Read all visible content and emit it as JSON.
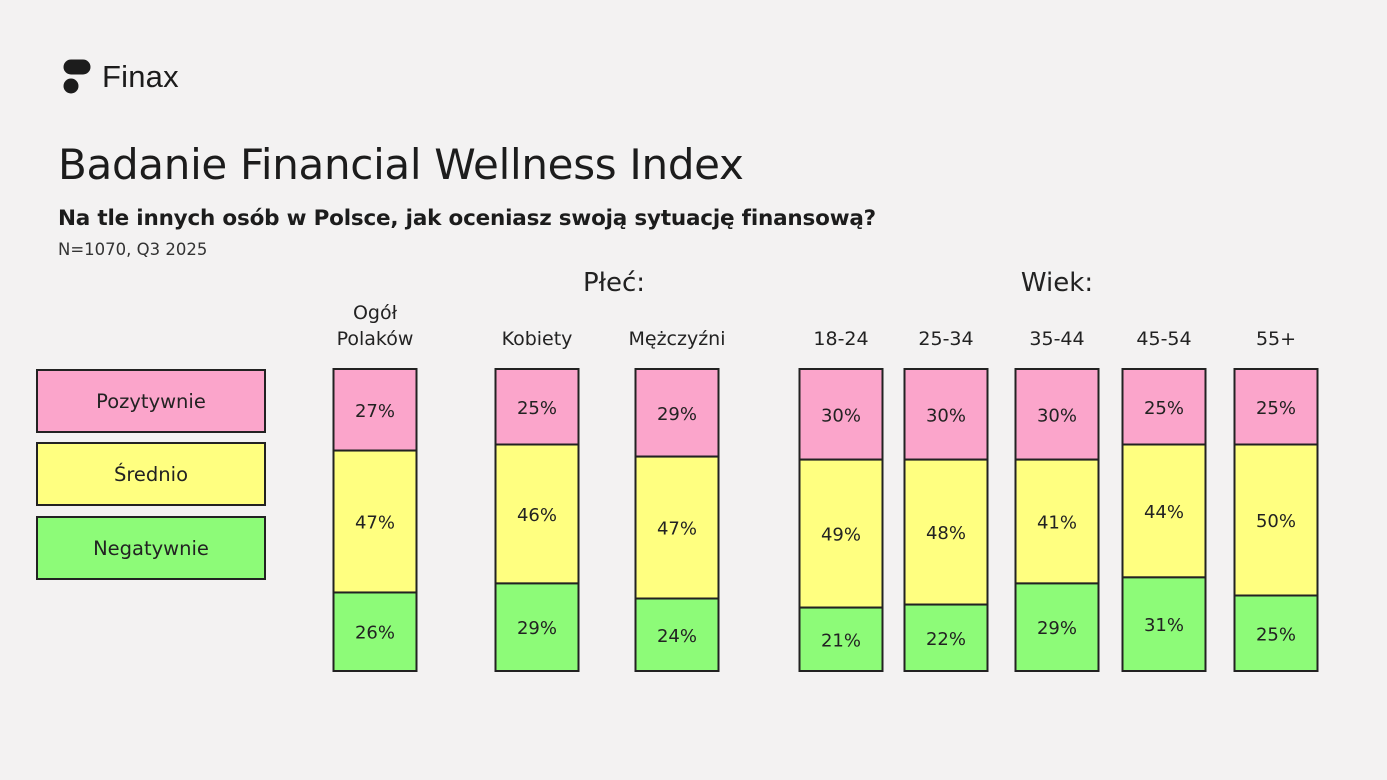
{
  "brand": {
    "name": "Finax",
    "icon": "finax-logo-icon"
  },
  "title": "Badanie Financial Wellness Index",
  "subtitle": "Na tle innych osób w Polsce, jak oceniasz swoją sytuację finansową?",
  "meta": "N=1070, Q3 2025",
  "colors": {
    "positive": "#fba5cb",
    "average": "#ffff80",
    "negative": "#8dfb78",
    "border": "#222222"
  },
  "chart_data": {
    "type": "bar",
    "stacked": true,
    "normalized_percent": true,
    "groups": [
      {
        "label": "",
        "categories": [
          "Ogół Polaków"
        ]
      },
      {
        "label": "Płeć:",
        "categories": [
          "Kobiety",
          "Mężczyźni"
        ]
      },
      {
        "label": "Wiek:",
        "categories": [
          "18-24",
          "25-34",
          "35-44",
          "45-54",
          "55+"
        ]
      }
    ],
    "categories": [
      "Ogół Polaków",
      "Kobiety",
      "Mężczyźni",
      "18-24",
      "25-34",
      "35-44",
      "45-54",
      "55+"
    ],
    "series": [
      {
        "name": "Pozytywnie",
        "values": [
          27,
          25,
          29,
          30,
          30,
          30,
          25,
          25
        ]
      },
      {
        "name": "Średnio",
        "values": [
          47,
          46,
          47,
          49,
          48,
          41,
          44,
          50
        ]
      },
      {
        "name": "Negatywnie",
        "values": [
          26,
          29,
          24,
          21,
          22,
          29,
          31,
          25
        ]
      }
    ],
    "value_suffix": "%",
    "legend": {
      "placement": "left"
    },
    "grid": false
  }
}
